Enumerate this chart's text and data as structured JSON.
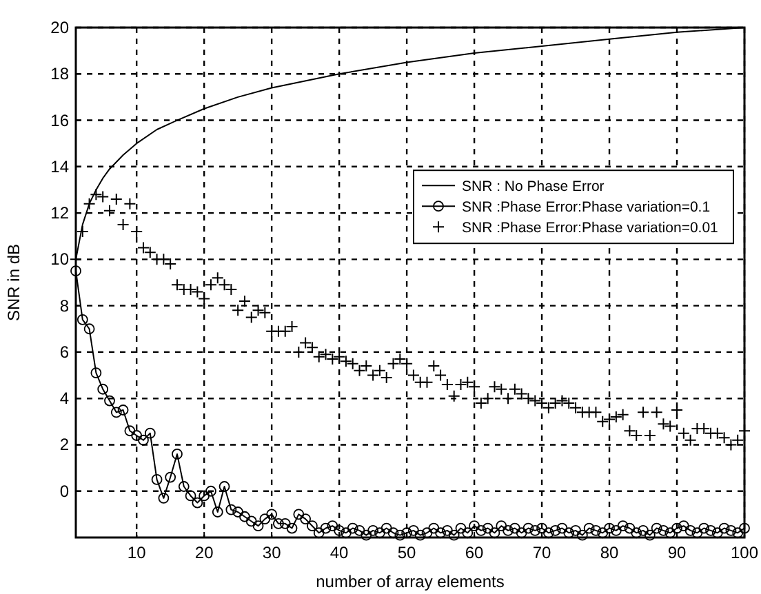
{
  "chart_data": {
    "type": "line",
    "xlabel": "number of array elements",
    "ylabel": "SNR in dB",
    "xlim": [
      1,
      100
    ],
    "xticks": [
      10,
      20,
      30,
      40,
      50,
      60,
      70,
      80,
      90,
      100
    ],
    "ylim": [
      -2,
      20
    ],
    "yticks": [
      0,
      2,
      4,
      6,
      8,
      10,
      12,
      14,
      16,
      18,
      20
    ],
    "grid": true,
    "legend": "right",
    "series": [
      {
        "name": "SNR : No Phase Error",
        "marker": "none",
        "color": "#000000",
        "x": [
          1,
          2,
          3,
          4,
          5,
          6,
          8,
          10,
          13,
          16,
          20,
          25,
          30,
          40,
          50,
          60,
          70,
          80,
          90,
          100
        ],
        "values": [
          10,
          11.5,
          12.4,
          13,
          13.5,
          13.9,
          14.5,
          15,
          15.6,
          16,
          16.5,
          17,
          17.4,
          18,
          18.5,
          18.9,
          19.2,
          19.5,
          19.8,
          20
        ]
      },
      {
        "name": "SNR :Phase Error:Phase variation=0.1",
        "marker": "circle",
        "color": "#000000",
        "x": [
          1,
          2,
          3,
          4,
          5,
          6,
          7,
          8,
          9,
          10,
          11,
          12,
          13,
          14,
          15,
          16,
          17,
          18,
          19,
          20,
          21,
          22,
          23,
          24,
          25,
          26,
          27,
          28,
          29,
          30,
          31,
          32,
          33,
          34,
          35,
          36,
          37,
          38,
          39,
          40,
          41,
          42,
          43,
          44,
          45,
          46,
          47,
          48,
          49,
          50,
          51,
          52,
          53,
          54,
          55,
          56,
          57,
          58,
          59,
          60,
          61,
          62,
          63,
          64,
          65,
          66,
          67,
          68,
          69,
          70,
          71,
          72,
          73,
          74,
          75,
          76,
          77,
          78,
          79,
          80,
          81,
          82,
          83,
          84,
          85,
          86,
          87,
          88,
          89,
          90,
          91,
          92,
          93,
          94,
          95,
          96,
          97,
          98,
          99,
          100
        ],
        "values": [
          9.5,
          7.4,
          7.0,
          5.1,
          4.4,
          3.9,
          3.4,
          3.5,
          2.6,
          2.4,
          2.2,
          2.5,
          0.5,
          -0.3,
          0.6,
          1.6,
          0.2,
          -0.2,
          -0.5,
          -0.2,
          0,
          -0.9,
          0.2,
          -0.8,
          -0.9,
          -1.1,
          -1.3,
          -1.5,
          -1.2,
          -1.0,
          -1.4,
          -1.4,
          -1.6,
          -1.0,
          -1.2,
          -1.5,
          -1.8,
          -1.6,
          -1.5,
          -1.7,
          -1.8,
          -1.6,
          -1.7,
          -1.9,
          -1.7,
          -1.8,
          -1.6,
          -1.8,
          -1.9,
          -1.8,
          -1.7,
          -1.9,
          -1.8,
          -1.6,
          -1.8,
          -1.7,
          -1.9,
          -1.6,
          -1.8,
          -1.5,
          -1.7,
          -1.6,
          -1.8,
          -1.5,
          -1.7,
          -1.6,
          -1.8,
          -1.6,
          -1.7,
          -1.6,
          -1.8,
          -1.7,
          -1.6,
          -1.8,
          -1.7,
          -1.9,
          -1.6,
          -1.7,
          -1.8,
          -1.6,
          -1.7,
          -1.5,
          -1.6,
          -1.8,
          -1.7,
          -1.9,
          -1.6,
          -1.7,
          -1.8,
          -1.6,
          -1.5,
          -1.7,
          -1.8,
          -1.6,
          -1.7,
          -1.8,
          -1.6,
          -1.7,
          -1.8,
          -1.6
        ]
      },
      {
        "name": "SNR :Phase Error:Phase variation=0.01",
        "type": "scatter",
        "marker": "cross",
        "color": "#000000",
        "x": [
          1,
          2,
          3,
          4,
          5,
          6,
          7,
          8,
          9,
          10,
          11,
          12,
          13,
          14,
          15,
          16,
          17,
          18,
          19,
          20,
          21,
          22,
          23,
          24,
          25,
          26,
          27,
          28,
          29,
          30,
          31,
          32,
          33,
          34,
          35,
          36,
          37,
          38,
          39,
          40,
          41,
          42,
          43,
          44,
          45,
          46,
          47,
          48,
          49,
          50,
          51,
          52,
          53,
          54,
          55,
          56,
          57,
          58,
          59,
          60,
          61,
          62,
          63,
          64,
          65,
          66,
          67,
          68,
          69,
          70,
          71,
          72,
          73,
          74,
          75,
          76,
          77,
          78,
          79,
          80,
          81,
          82,
          83,
          84,
          85,
          86,
          87,
          88,
          89,
          90,
          91,
          92,
          93,
          94,
          95,
          96,
          97,
          98,
          99,
          100
        ],
        "values": [
          10,
          11.2,
          12.4,
          12.8,
          12.7,
          12.1,
          12.6,
          11.5,
          12.4,
          11.2,
          10.5,
          10.3,
          10,
          10,
          9.8,
          8.9,
          8.7,
          8.7,
          8.6,
          8.3,
          8.9,
          9.2,
          8.9,
          8.7,
          7.8,
          8.2,
          7.5,
          7.8,
          7.7,
          6.9,
          6.9,
          6.9,
          7.1,
          6.0,
          6.4,
          6.2,
          5.8,
          5.9,
          5.7,
          5.8,
          5.6,
          5.5,
          5.2,
          5.4,
          5.0,
          5.2,
          4.9,
          5.5,
          5.7,
          5.5,
          5.0,
          4.7,
          4.7,
          5.4,
          5.0,
          4.6,
          4.1,
          4.6,
          4.7,
          4.5,
          3.8,
          4.0,
          4.5,
          4.4,
          4.0,
          4.4,
          4.2,
          4.0,
          3.9,
          3.8,
          3.6,
          3.8,
          3.9,
          3.8,
          3.6,
          3.4,
          3.4,
          3.4,
          3.0,
          3.1,
          3.2,
          3.3,
          2.6,
          2.4,
          3.4,
          2.4,
          3.4,
          2.9,
          2.8,
          3.5,
          2.5,
          2.2,
          2.7,
          2.7,
          2.5,
          2.5,
          2.3,
          2.0,
          2.2,
          2.6
        ]
      }
    ]
  }
}
